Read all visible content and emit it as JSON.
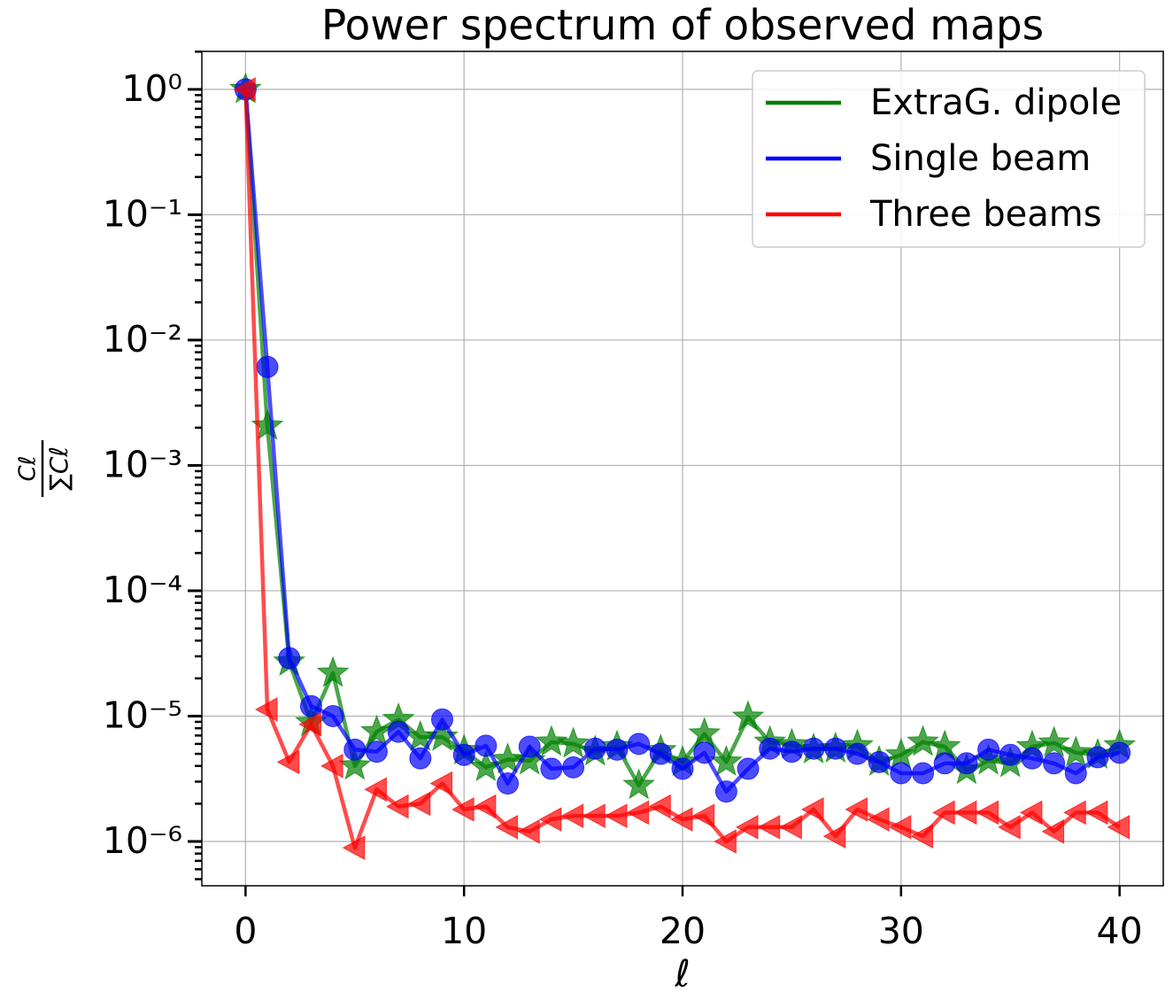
{
  "chart_data": {
    "type": "line",
    "title": "Power spectrum of observed maps",
    "xlabel": "ℓ",
    "ylabel_numerator": "Cℓ",
    "ylabel_denominator": "∑Cℓ",
    "x": [
      0,
      1,
      2,
      3,
      4,
      5,
      6,
      7,
      8,
      9,
      10,
      11,
      12,
      13,
      14,
      15,
      16,
      17,
      18,
      19,
      20,
      21,
      22,
      23,
      24,
      25,
      26,
      27,
      28,
      29,
      30,
      31,
      32,
      33,
      34,
      35,
      36,
      37,
      38,
      39,
      40
    ],
    "series": [
      {
        "name": "ExtraG. dipole",
        "color": "#008000",
        "marker": "star",
        "values": [
          1,
          0.00206,
          2.7e-05,
          8.9e-06,
          2.2e-05,
          4e-06,
          7.5e-06,
          9.4e-06,
          6.8e-06,
          6.8e-06,
          5.3e-06,
          3.9e-06,
          4.5e-06,
          4.4e-06,
          6.2e-06,
          6e-06,
          5.2e-06,
          5.7e-06,
          2.8e-06,
          5.3e-06,
          4.3e-06,
          7.2e-06,
          4.3e-06,
          9.8e-06,
          6.2e-06,
          5.9e-06,
          5.4e-06,
          5.5e-06,
          5.8e-06,
          4.3e-06,
          4.9e-06,
          6.2e-06,
          5.7e-06,
          3.7e-06,
          4.4e-06,
          4.2e-06,
          5.7e-06,
          6.1e-06,
          5.1e-06,
          4.9e-06,
          5.8e-06
        ]
      },
      {
        "name": "Single beam",
        "color": "#0000ff",
        "marker": "circle",
        "values": [
          1,
          0.0061,
          2.9e-05,
          1.2e-05,
          1e-05,
          5.4e-06,
          5.2e-06,
          7.5e-06,
          4.6e-06,
          9.4e-06,
          4.9e-06,
          5.8e-06,
          2.9e-06,
          5.7e-06,
          3.8e-06,
          3.9e-06,
          5.5e-06,
          5.4e-06,
          6e-06,
          5e-06,
          3.8e-06,
          5.1e-06,
          2.5e-06,
          3.8e-06,
          5.5e-06,
          5.2e-06,
          5.5e-06,
          5.5e-06,
          5e-06,
          4.3e-06,
          3.5e-06,
          3.5e-06,
          4.2e-06,
          4.2e-06,
          5.4e-06,
          4.9e-06,
          4.6e-06,
          4.2e-06,
          3.5e-06,
          4.7e-06,
          5.1e-06
        ]
      },
      {
        "name": "Three beams",
        "color": "#ff0000",
        "marker": "triangle-left",
        "values": [
          1,
          1.13e-05,
          4.3e-06,
          8.6e-06,
          4e-06,
          8.9e-07,
          2.6e-06,
          1.9e-06,
          2e-06,
          2.9e-06,
          1.8e-06,
          1.9e-06,
          1.3e-06,
          1.2e-06,
          1.5e-06,
          1.6e-06,
          1.6e-06,
          1.6e-06,
          1.7e-06,
          1.9e-06,
          1.5e-06,
          1.6e-06,
          1e-06,
          1.3e-06,
          1.3e-06,
          1.3e-06,
          1.8e-06,
          1.1e-06,
          1.8e-06,
          1.5e-06,
          1.3e-06,
          1.1e-06,
          1.7e-06,
          1.7e-06,
          1.7e-06,
          1.3e-06,
          1.7e-06,
          1.2e-06,
          1.7e-06,
          1.7e-06,
          1.3e-06
        ]
      }
    ],
    "xlim": [
      -2,
      42
    ],
    "xticks": [
      0,
      10,
      20,
      30,
      40
    ],
    "ylim": [
      4.43e-07,
      2.01
    ],
    "log_y": true,
    "yticks": [
      {
        "value": 1,
        "label": "10⁰"
      },
      {
        "value": 0.1,
        "label": "10⁻¹"
      },
      {
        "value": 0.01,
        "label": "10⁻²"
      },
      {
        "value": 0.001,
        "label": "10⁻³"
      },
      {
        "value": 0.0001,
        "label": "10⁻⁴"
      },
      {
        "value": 1e-05,
        "label": "10⁻⁵"
      },
      {
        "value": 1e-06,
        "label": "10⁻⁶"
      }
    ],
    "minor_ticks": true,
    "grid": true,
    "legend": "upper right"
  }
}
